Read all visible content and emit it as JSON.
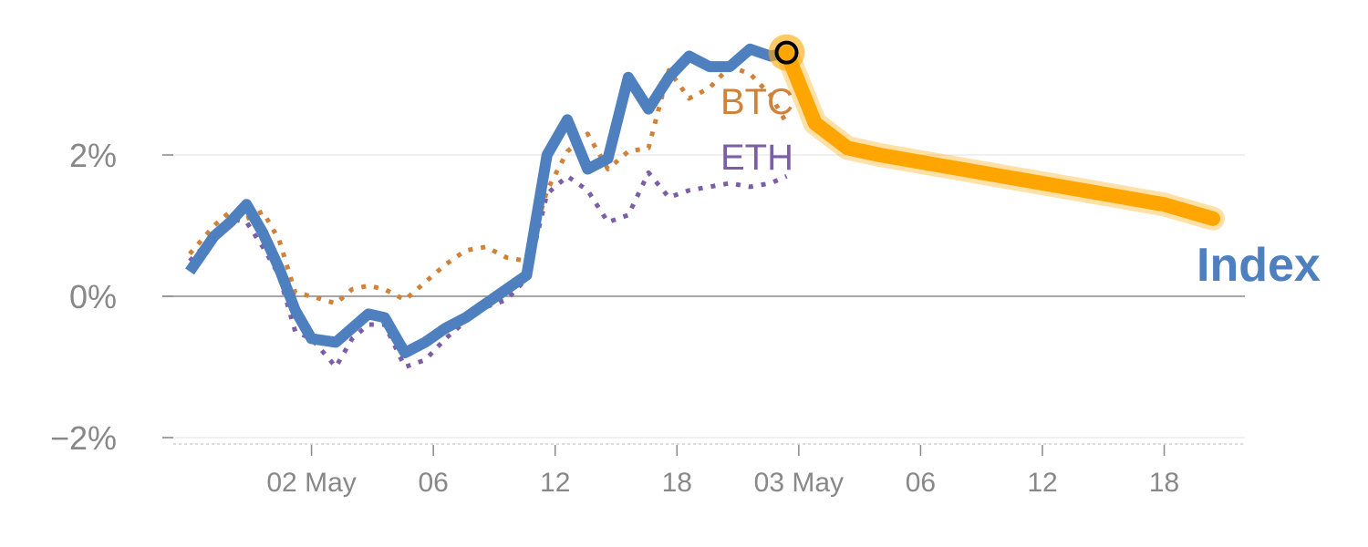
{
  "chart_data": {
    "type": "line",
    "title": "",
    "xlabel": "",
    "ylabel": "",
    "ylim": [
      -2.1,
      3.8
    ],
    "y_ticks": [
      {
        "value": 2,
        "label": "2%"
      },
      {
        "value": 0,
        "label": "0%"
      },
      {
        "value": -2,
        "label": "−2%"
      }
    ],
    "x_ticks": [
      "02 May",
      "06",
      "12",
      "18",
      "03 May",
      "06",
      "12",
      "18"
    ],
    "x_tick_positions": [
      3,
      6,
      9,
      12,
      15,
      18,
      21,
      24
    ],
    "xlim": [
      -0.2,
      25.4
    ],
    "grid": "horizontal",
    "legend": "none",
    "colors": {
      "index": "#4e7fbf",
      "btc": "#d0823a",
      "eth": "#7b5ea7",
      "forecast": "#ffa500",
      "zero_line": "#888888",
      "grid": "#e6e6e6"
    },
    "series": [
      {
        "key": "btc",
        "name": "BTC",
        "style": "dotted",
        "x": [
          0,
          0.6,
          1,
          1.4,
          1.8,
          2.2,
          2.6,
          3,
          3.6,
          4,
          4.4,
          4.8,
          5.3,
          5.8,
          6.3,
          6.8,
          7.3,
          7.8,
          8.3,
          8.8,
          9.3,
          9.8,
          10.3,
          10.8,
          11.3,
          11.8,
          12.3,
          12.8,
          13.3,
          13.8,
          14.3,
          14.7
        ],
        "values": [
          0.6,
          1.0,
          1.2,
          1.1,
          1.2,
          0.8,
          0.05,
          0.0,
          -0.1,
          0.1,
          0.15,
          0.1,
          -0.05,
          0.2,
          0.45,
          0.65,
          0.7,
          0.55,
          0.5,
          1.5,
          2.05,
          2.3,
          1.8,
          2.05,
          2.1,
          3.2,
          2.8,
          2.95,
          3.25,
          3.15,
          2.85,
          2.45
        ]
      },
      {
        "key": "eth",
        "name": "ETH",
        "style": "dotted",
        "x": [
          0,
          0.6,
          1,
          1.4,
          1.8,
          2.2,
          2.6,
          3,
          3.6,
          4,
          4.4,
          4.8,
          5.3,
          5.8,
          6.3,
          6.8,
          7.3,
          7.8,
          8.3,
          8.8,
          9.3,
          9.8,
          10.3,
          10.8,
          11.3,
          11.8,
          12.3,
          12.8,
          13.3,
          13.8,
          14.3,
          14.7
        ],
        "values": [
          0.5,
          0.85,
          1.1,
          1.05,
          0.7,
          0.3,
          -0.5,
          -0.6,
          -1.0,
          -0.6,
          -0.4,
          -0.4,
          -1.0,
          -0.9,
          -0.6,
          -0.35,
          -0.15,
          -0.05,
          0.25,
          1.45,
          1.7,
          1.5,
          1.05,
          1.15,
          1.75,
          1.4,
          1.5,
          1.55,
          1.6,
          1.55,
          1.6,
          1.7
        ]
      },
      {
        "key": "index",
        "name": "Index",
        "style": "solid",
        "x": [
          0,
          0.6,
          1,
          1.4,
          1.8,
          2.2,
          2.6,
          3,
          3.6,
          4,
          4.4,
          4.8,
          5.3,
          5.8,
          6.3,
          6.8,
          7.3,
          7.8,
          8.3,
          8.8,
          9.3,
          9.8,
          10.3,
          10.8,
          11.3,
          11.8,
          12.3,
          12.8,
          13.3,
          13.8,
          14.3,
          14.7
        ],
        "values": [
          0.35,
          0.85,
          1.05,
          1.3,
          0.9,
          0.4,
          -0.2,
          -0.6,
          -0.65,
          -0.45,
          -0.25,
          -0.3,
          -0.8,
          -0.65,
          -0.45,
          -0.3,
          -0.1,
          0.1,
          0.3,
          2.0,
          2.5,
          1.8,
          1.95,
          3.1,
          2.65,
          3.1,
          3.4,
          3.25,
          3.25,
          3.5,
          3.4,
          3.45
        ]
      },
      {
        "key": "forecast",
        "name": "",
        "style": "band",
        "x": [
          14.7,
          15.4,
          16.2,
          17,
          18,
          19,
          20,
          21,
          22,
          23,
          24,
          25.2
        ],
        "values": [
          3.45,
          2.45,
          2.1,
          2.0,
          1.9,
          1.8,
          1.7,
          1.6,
          1.5,
          1.4,
          1.3,
          1.1
        ]
      }
    ],
    "marker": {
      "x": 14.7,
      "value": 3.45
    },
    "labels": {
      "btc": "BTC",
      "eth": "ETH",
      "index": "Index"
    }
  }
}
